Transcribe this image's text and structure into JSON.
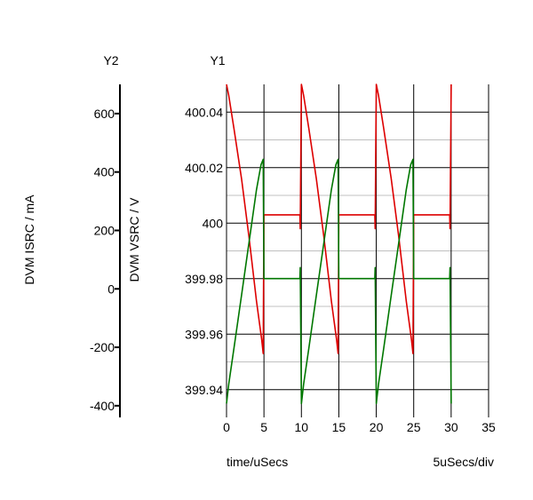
{
  "chart_data": {
    "type": "line",
    "y2_label": "Y2",
    "y1_label": "Y1",
    "y2_axis_title": "DVM ISRC / mA",
    "y1_axis_title": "DVM VSRC / V",
    "xlabel": "time/uSecs",
    "x_scale_label": "5uSecs/div",
    "xlim": [
      0,
      35
    ],
    "x_ticks": [
      0,
      5,
      10,
      15,
      20,
      25,
      30,
      35
    ],
    "y1_lim": [
      399.93,
      400.05
    ],
    "y1_ticks": [
      399.94,
      399.96,
      399.98,
      400,
      400.02,
      400.04
    ],
    "y1_tick_labels": [
      "399.94",
      "399.96",
      "399.98",
      "400",
      "400.02",
      "400.04"
    ],
    "y2_lim": [
      -440,
      700
    ],
    "y2_ticks": [
      -400,
      -200,
      0,
      200,
      400,
      600
    ],
    "y2_tick_labels": [
      "-400",
      "-200",
      "0",
      "200",
      "400",
      "600"
    ],
    "grid": true,
    "series": [
      {
        "color": "#dd0000",
        "axis": "y1",
        "points": [
          [
            0,
            400.05
          ],
          [
            0.3,
            400.046
          ],
          [
            1,
            400.034
          ],
          [
            2,
            400.016
          ],
          [
            3,
            399.995
          ],
          [
            4,
            399.972
          ],
          [
            4.7,
            399.958
          ],
          [
            4.9,
            399.953
          ],
          [
            5,
            400.003
          ],
          [
            6,
            400.003
          ],
          [
            7,
            400.003
          ],
          [
            8,
            400.003
          ],
          [
            9,
            400.003
          ],
          [
            9.8,
            400.003
          ],
          [
            9.85,
            399.998
          ],
          [
            10,
            400.05
          ],
          [
            10.3,
            400.046
          ],
          [
            11,
            400.034
          ],
          [
            12,
            400.016
          ],
          [
            13,
            399.995
          ],
          [
            14,
            399.972
          ],
          [
            14.7,
            399.958
          ],
          [
            14.9,
            399.953
          ],
          [
            15,
            400.003
          ],
          [
            16,
            400.003
          ],
          [
            17,
            400.003
          ],
          [
            18,
            400.003
          ],
          [
            19,
            400.003
          ],
          [
            19.8,
            400.003
          ],
          [
            19.85,
            399.998
          ],
          [
            20,
            400.05
          ],
          [
            20.3,
            400.046
          ],
          [
            21,
            400.034
          ],
          [
            22,
            400.016
          ],
          [
            23,
            399.995
          ],
          [
            24,
            399.972
          ],
          [
            24.7,
            399.958
          ],
          [
            24.9,
            399.953
          ],
          [
            25,
            400.003
          ],
          [
            26,
            400.003
          ],
          [
            27,
            400.003
          ],
          [
            28,
            400.003
          ],
          [
            29,
            400.003
          ],
          [
            29.8,
            400.003
          ],
          [
            29.85,
            399.998
          ],
          [
            30,
            400.05
          ]
        ]
      },
      {
        "color": "#007700",
        "axis": "y1",
        "points": [
          [
            0,
            399.935
          ],
          [
            0.3,
            399.942
          ],
          [
            1,
            399.955
          ],
          [
            2,
            399.974
          ],
          [
            3,
            399.993
          ],
          [
            4,
            400.012
          ],
          [
            4.6,
            400.021
          ],
          [
            4.9,
            400.023
          ],
          [
            5,
            399.98
          ],
          [
            6,
            399.98
          ],
          [
            7,
            399.98
          ],
          [
            8,
            399.98
          ],
          [
            9,
            399.98
          ],
          [
            9.8,
            399.98
          ],
          [
            9.85,
            399.984
          ],
          [
            10,
            399.935
          ],
          [
            10.3,
            399.942
          ],
          [
            11,
            399.955
          ],
          [
            12,
            399.974
          ],
          [
            13,
            399.993
          ],
          [
            14,
            400.012
          ],
          [
            14.6,
            400.021
          ],
          [
            14.9,
            400.023
          ],
          [
            15,
            399.98
          ],
          [
            16,
            399.98
          ],
          [
            17,
            399.98
          ],
          [
            18,
            399.98
          ],
          [
            19,
            399.98
          ],
          [
            19.8,
            399.98
          ],
          [
            19.85,
            399.984
          ],
          [
            20,
            399.935
          ],
          [
            20.3,
            399.942
          ],
          [
            21,
            399.955
          ],
          [
            22,
            399.974
          ],
          [
            23,
            399.993
          ],
          [
            24,
            400.012
          ],
          [
            24.6,
            400.021
          ],
          [
            24.9,
            400.023
          ],
          [
            25,
            399.98
          ],
          [
            26,
            399.98
          ],
          [
            27,
            399.98
          ],
          [
            28,
            399.98
          ],
          [
            29,
            399.98
          ],
          [
            29.8,
            399.98
          ],
          [
            29.85,
            399.984
          ],
          [
            30,
            399.935
          ]
        ]
      }
    ]
  }
}
